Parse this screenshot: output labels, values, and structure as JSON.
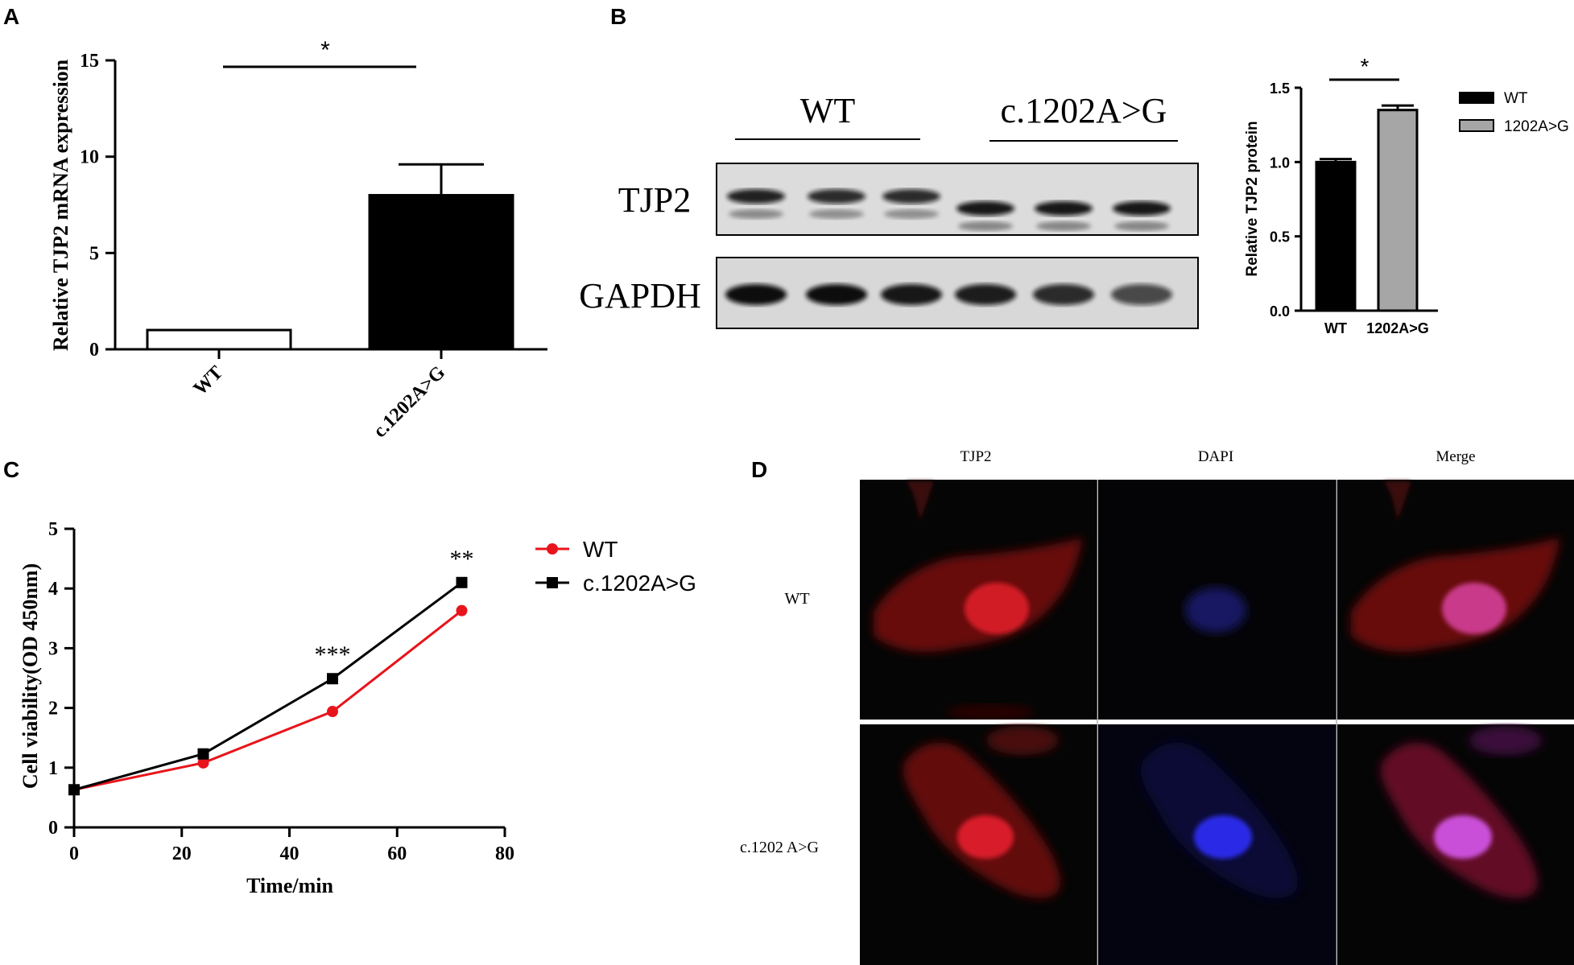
{
  "panels": {
    "A": "A",
    "B": "B",
    "C": "C",
    "D": "D"
  },
  "colors": {
    "black": "#000000",
    "red": "#e8141b",
    "gray": "#a6a6a6",
    "white": "#ffffff"
  },
  "chart_data": [
    {
      "panel": "A",
      "type": "bar",
      "categories": [
        "WT",
        "c.1202A>G"
      ],
      "values": [
        1.0,
        8.0
      ],
      "errors": [
        0,
        1.6
      ],
      "bar_fills": [
        "white",
        "black"
      ],
      "ylabel": "Relative TJP2 mRNA expression",
      "xlabel": "",
      "ylim": [
        0,
        15
      ],
      "yticks": [
        "0",
        "5",
        "10",
        "15"
      ],
      "significance": "*",
      "grid": false
    },
    {
      "panel": "B",
      "type": "bar",
      "categories": [
        "WT",
        "1202A>G"
      ],
      "values": [
        1.0,
        1.35
      ],
      "errors": [
        0.02,
        0.03
      ],
      "ylabel": "Relative TJP2 protein",
      "ylim": [
        0,
        1.5
      ],
      "yticks": [
        "0.0",
        "0.5",
        "1.0",
        "1.5"
      ],
      "series": [
        {
          "name": "WT",
          "color": "#000000"
        },
        {
          "name": "1202A>G",
          "color": "#a6a6a6"
        }
      ],
      "legend": "right",
      "significance": "*",
      "grid": false
    },
    {
      "panel": "C",
      "type": "line",
      "x": [
        0,
        24,
        48,
        72
      ],
      "xlabel": "Time/min",
      "ylabel": "Cell viability(OD 450nm)",
      "xlim": [
        0,
        80
      ],
      "ylim": [
        0,
        5
      ],
      "xticks": [
        "0",
        "20",
        "40",
        "60",
        "80"
      ],
      "yticks": [
        "0",
        "1",
        "2",
        "3",
        "4",
        "5"
      ],
      "series": [
        {
          "name": "WT",
          "values": [
            0.63,
            1.08,
            1.94,
            3.63
          ],
          "color": "#e8141b",
          "marker": "circle"
        },
        {
          "name": "c.1202A>G",
          "values": [
            0.63,
            1.23,
            2.49,
            4.1
          ],
          "color": "#000000",
          "marker": "square"
        }
      ],
      "annotations": [
        {
          "x": 48,
          "text": "***"
        },
        {
          "x": 72,
          "text": "**"
        }
      ],
      "legend": "right",
      "grid": false
    }
  ],
  "blot": {
    "group_labels": [
      "WT",
      "c.1202A>G"
    ],
    "row_labels": [
      "TJP2",
      "GAPDH"
    ],
    "tjp2_intensity": [
      0.9,
      0.85,
      0.85,
      0.95,
      0.95,
      0.95
    ],
    "gapdh_intensity": [
      1.0,
      1.0,
      0.95,
      0.92,
      0.85,
      0.7
    ]
  },
  "microscopy": {
    "column_labels": [
      "TJP2",
      "DAPI",
      "Merge"
    ],
    "row_labels": [
      "WT",
      "c.1202 A>G"
    ]
  }
}
